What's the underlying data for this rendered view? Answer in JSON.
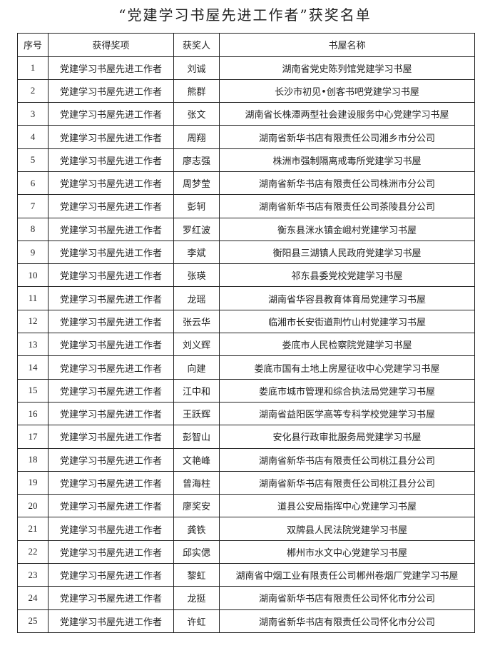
{
  "title": "“党建学习书屋先进工作者”获奖名单",
  "table": {
    "headers": [
      "序号",
      "获得奖项",
      "获奖人",
      "书屋名称"
    ],
    "rows": [
      {
        "no": "1",
        "award": "党建学习书屋先进工作者",
        "name": "刘诚",
        "library": "湖南省党史陈列馆党建学习书屋"
      },
      {
        "no": "2",
        "award": "党建学习书屋先进工作者",
        "name": "熊群",
        "library": "长沙市初见•创客书吧党建学习书屋"
      },
      {
        "no": "3",
        "award": "党建学习书屋先进工作者",
        "name": "张文",
        "library": "湖南省长株潭两型社会建设服务中心党建学习书屋"
      },
      {
        "no": "4",
        "award": "党建学习书屋先进工作者",
        "name": "周翔",
        "library": "湖南省新华书店有限责任公司湘乡市分公司"
      },
      {
        "no": "5",
        "award": "党建学习书屋先进工作者",
        "name": "廖志强",
        "library": "株洲市强制隔离戒毒所党建学习书屋"
      },
      {
        "no": "6",
        "award": "党建学习书屋先进工作者",
        "name": "周梦莹",
        "library": "湖南省新华书店有限责任公司株洲市分公司"
      },
      {
        "no": "7",
        "award": "党建学习书屋先进工作者",
        "name": "彭轲",
        "library": "湖南省新华书店有限责任公司茶陵县分公司"
      },
      {
        "no": "8",
        "award": "党建学习书屋先进工作者",
        "name": "罗红波",
        "library": "衡东县洣水镇金峨村党建学习书屋"
      },
      {
        "no": "9",
        "award": "党建学习书屋先进工作者",
        "name": "李斌",
        "library": "衡阳县三湖镇人民政府党建学习书屋"
      },
      {
        "no": "10",
        "award": "党建学习书屋先进工作者",
        "name": "张瑛",
        "library": "祁东县委党校党建学习书屋"
      },
      {
        "no": "11",
        "award": "党建学习书屋先进工作者",
        "name": "龙瑶",
        "library": "湖南省华容县教育体育局党建学习书屋"
      },
      {
        "no": "12",
        "award": "党建学习书屋先进工作者",
        "name": "张云华",
        "library": "临湘市长安街道荆竹山村党建学习书屋"
      },
      {
        "no": "13",
        "award": "党建学习书屋先进工作者",
        "name": "刘义辉",
        "library": "娄底市人民检察院党建学习书屋"
      },
      {
        "no": "14",
        "award": "党建学习书屋先进工作者",
        "name": "向建",
        "library": "娄底市国有土地上房屋征收中心党建学习书屋"
      },
      {
        "no": "15",
        "award": "党建学习书屋先进工作者",
        "name": "江中和",
        "library": "娄底市城市管理和综合执法局党建学习书屋"
      },
      {
        "no": "16",
        "award": "党建学习书屋先进工作者",
        "name": "王跃辉",
        "library": "湖南省益阳医学高等专科学校党建学习书屋"
      },
      {
        "no": "17",
        "award": "党建学习书屋先进工作者",
        "name": "彭智山",
        "library": "安化县行政审批服务局党建学习书屋"
      },
      {
        "no": "18",
        "award": "党建学习书屋先进工作者",
        "name": "文艳峰",
        "library": "湖南省新华书店有限责任公司桃江县分公司"
      },
      {
        "no": "19",
        "award": "党建学习书屋先进工作者",
        "name": "曾海柱",
        "library": "湖南省新华书店有限责任公司桃江县分公司"
      },
      {
        "no": "20",
        "award": "党建学习书屋先进工作者",
        "name": "廖奖安",
        "library": "道县公安局指挥中心党建学习书屋"
      },
      {
        "no": "21",
        "award": "党建学习书屋先进工作者",
        "name": "龚铁",
        "library": "双牌县人民法院党建学习书屋"
      },
      {
        "no": "22",
        "award": "党建学习书屋先进工作者",
        "name": "邱实偲",
        "library": "郴州市水文中心党建学习书屋"
      },
      {
        "no": "23",
        "award": "党建学习书屋先进工作者",
        "name": "黎虹",
        "library": "湖南省中烟工业有限责任公司郴州卷烟厂党建学习书屋"
      },
      {
        "no": "24",
        "award": "党建学习书屋先进工作者",
        "name": "龙挺",
        "library": "湖南省新华书店有限责任公司怀化市分公司"
      },
      {
        "no": "25",
        "award": "党建学习书屋先进工作者",
        "name": "许虹",
        "library": "湖南省新华书店有限责任公司怀化市分公司"
      }
    ]
  }
}
